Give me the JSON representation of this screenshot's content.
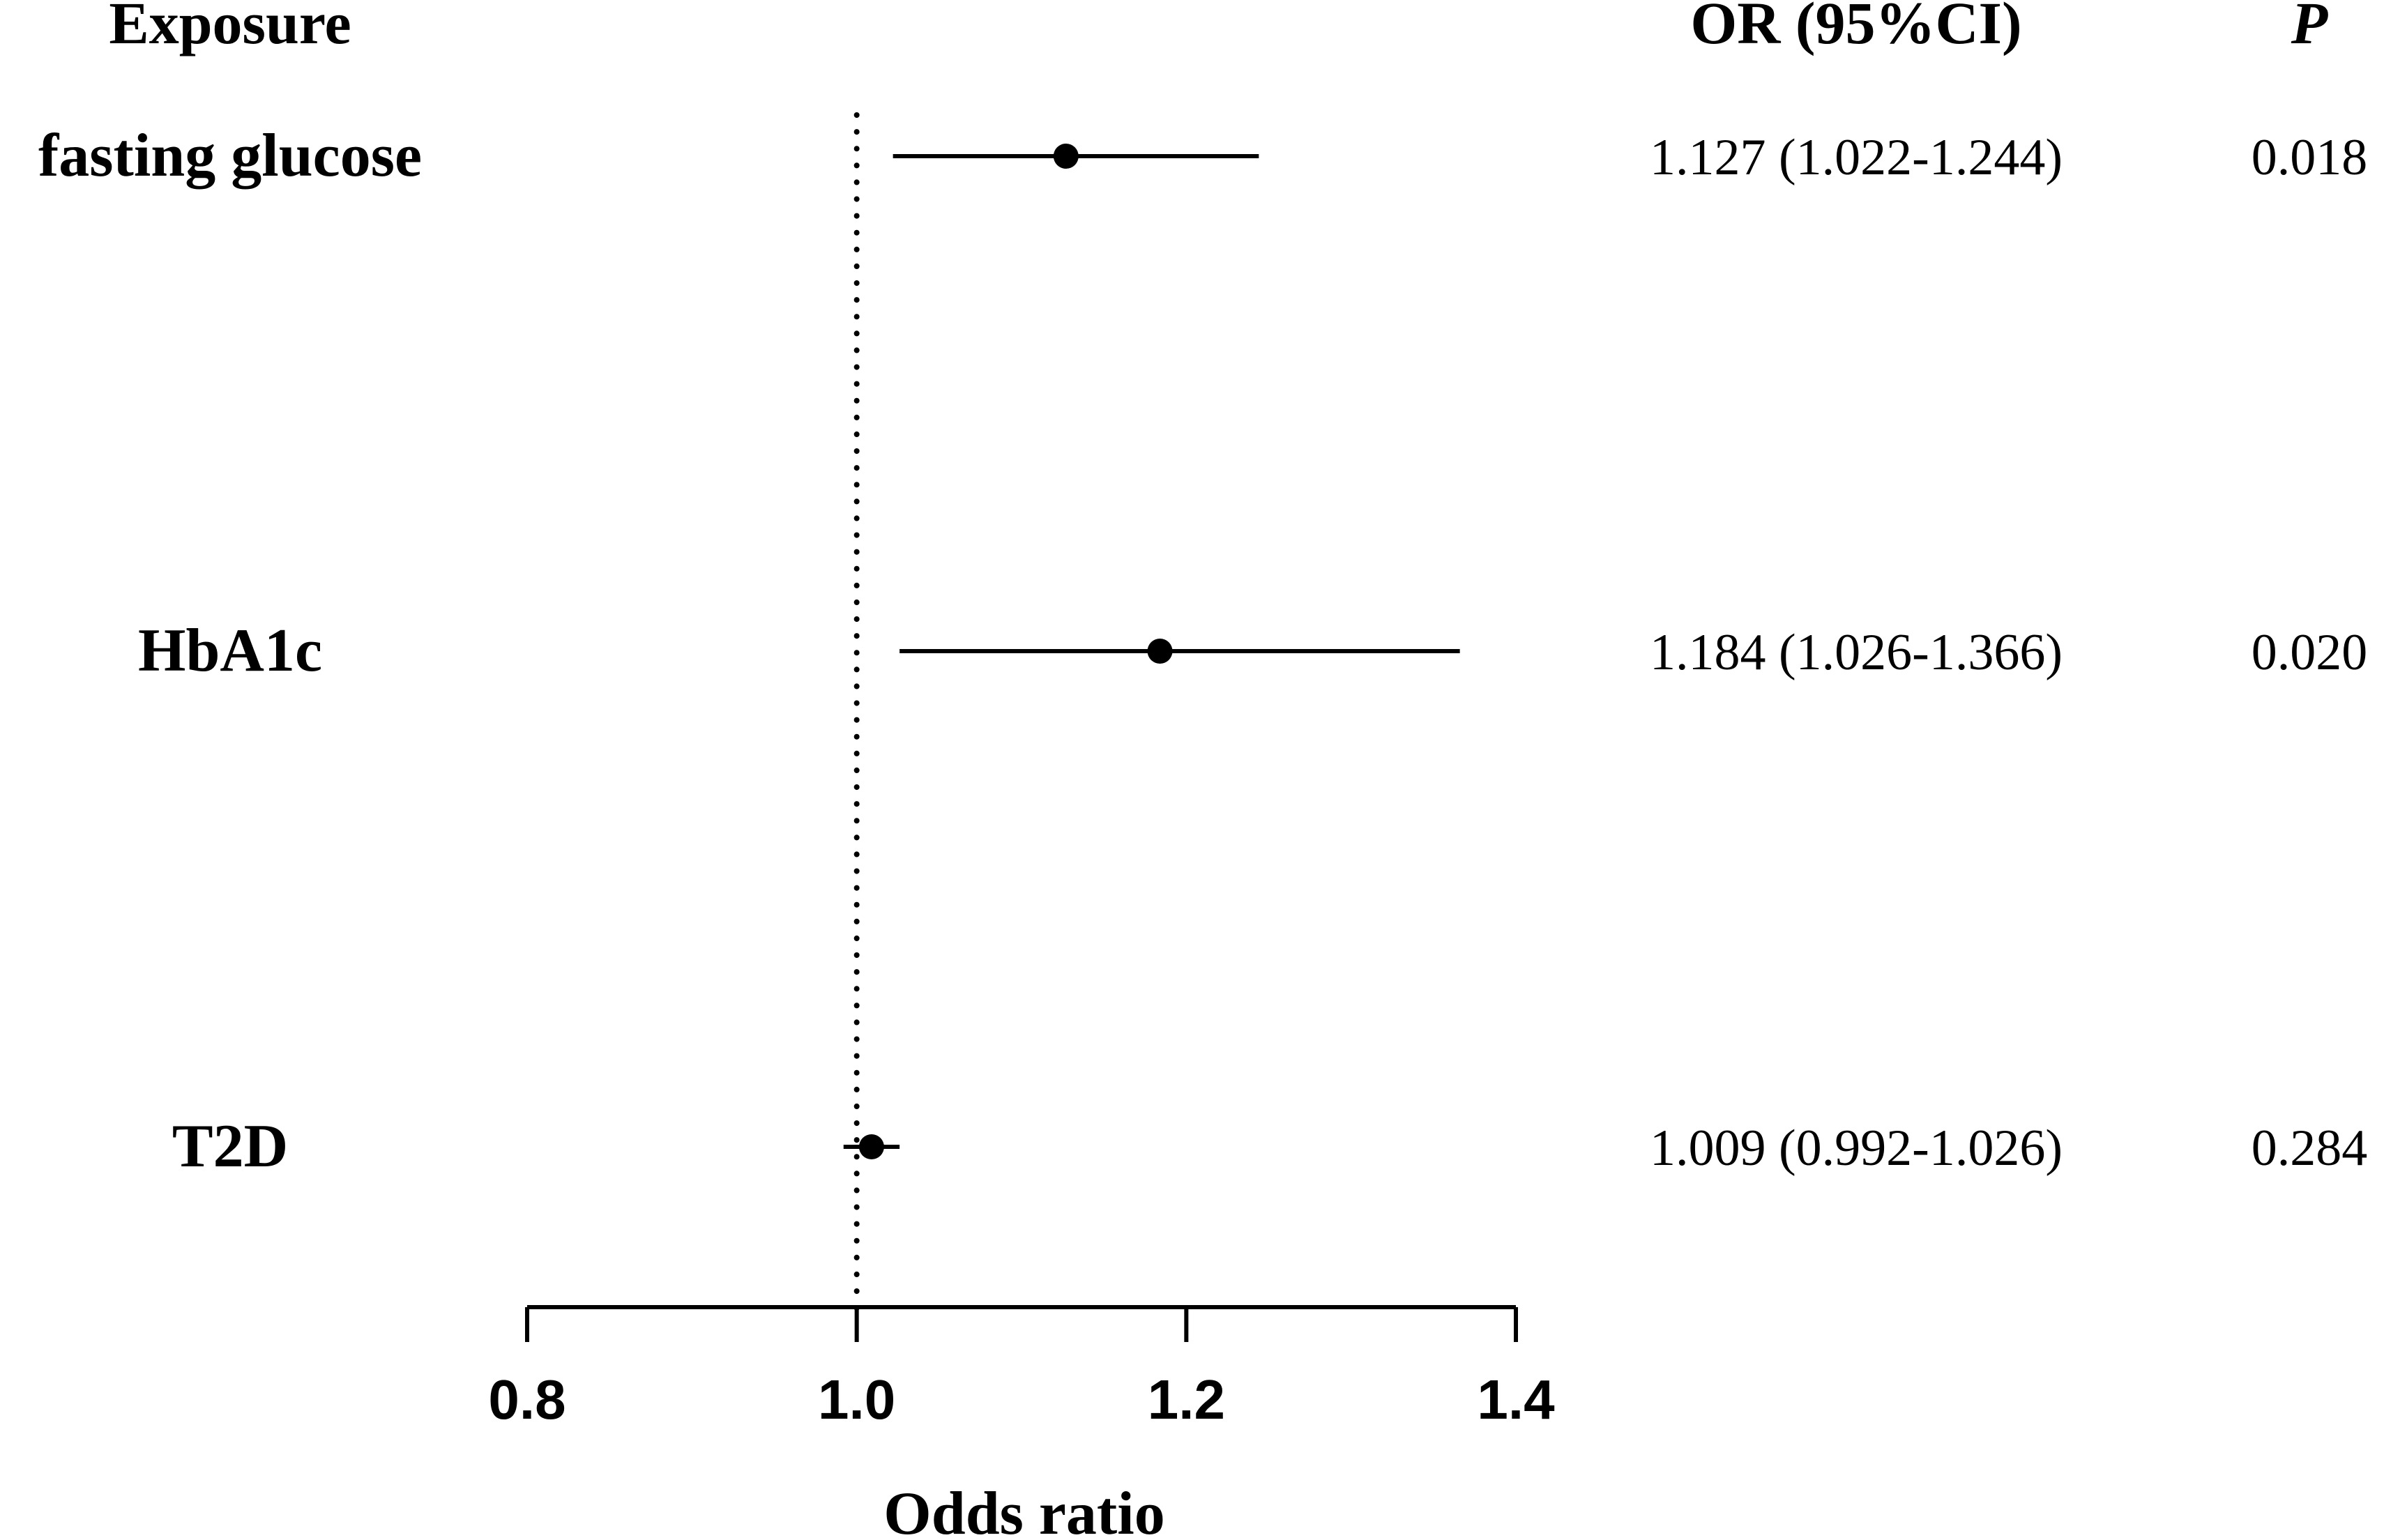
{
  "headers": {
    "exposure": "Exposure",
    "or_ci": "OR (95%CI)",
    "p": "P"
  },
  "chart_data": {
    "type": "forest",
    "xlabel": "Odds ratio",
    "xlim": [
      0.8,
      1.4
    ],
    "reference_line": 1.0,
    "ticks": [
      "0.8",
      "1.0",
      "1.2",
      "1.4"
    ],
    "tick_values": [
      0.8,
      1.0,
      1.2,
      1.4
    ],
    "rows": [
      {
        "label": "fasting glucose",
        "or": 1.127,
        "lower": 1.022,
        "upper": 1.244,
        "or_ci": "1.127 (1.022-1.244)",
        "p": "0.018"
      },
      {
        "label": "HbA1c",
        "or": 1.184,
        "lower": 1.026,
        "upper": 1.366,
        "or_ci": "1.184 (1.026-1.366)",
        "p": "0.020"
      },
      {
        "label": "T2D",
        "or": 1.009,
        "lower": 0.992,
        "upper": 1.026,
        "or_ci": "1.009 (0.992-1.026)",
        "p": "0.284"
      }
    ]
  }
}
